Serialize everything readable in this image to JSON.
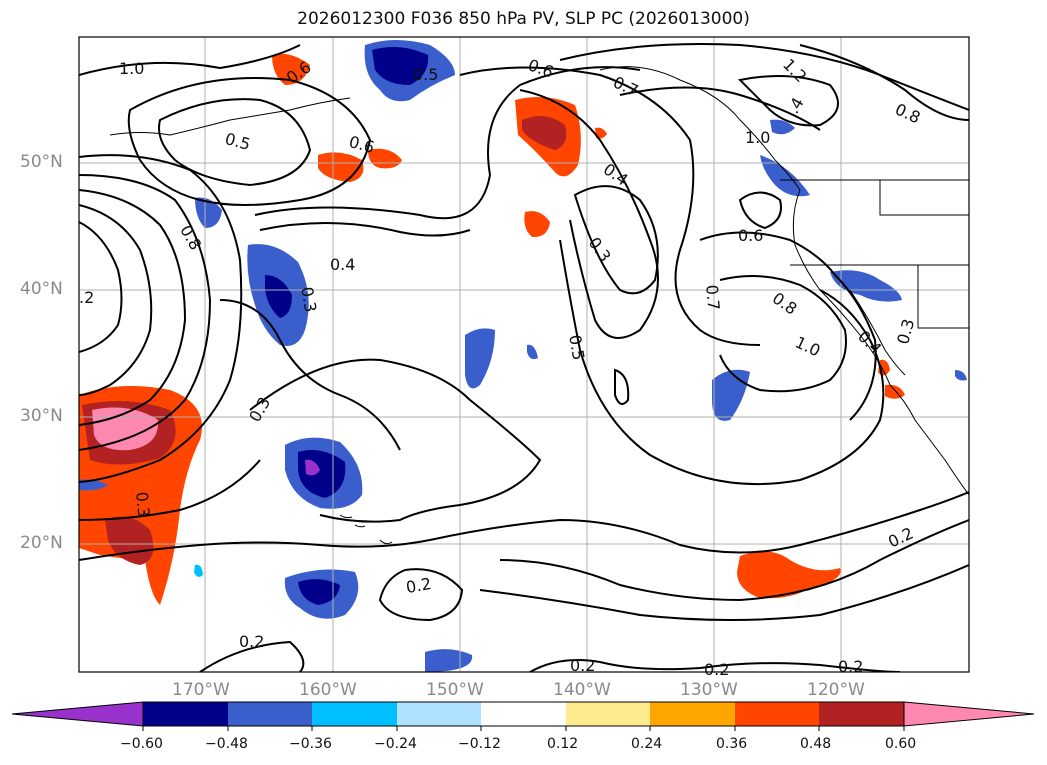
{
  "title": "2026012300 F036 850 hPa PV, SLP PC (2026013000)",
  "axes": {
    "lat_labels": [
      "50°N",
      "40°N",
      "30°N",
      "20°N"
    ],
    "lon_labels": [
      "170°W",
      "160°W",
      "150°W",
      "140°W",
      "130°W",
      "120°W"
    ]
  },
  "contour_labels": [
    "1.0",
    "0.6",
    "0.5",
    "0.5",
    "0.6",
    "0.6",
    "0.7",
    "1.2",
    ".4",
    "1.0",
    "0.8",
    "0.4",
    "0.3",
    "0.4",
    "0.8",
    "0.3",
    "0.6",
    "0.7",
    "0.8",
    "1.0",
    "0.4",
    "0.3",
    "0.5",
    "0.3",
    ".2",
    "0.3",
    "0.2",
    "0.2",
    "0.2",
    "0.2",
    "0.2",
    "0.2"
  ],
  "colorbar": {
    "ticks": [
      "−0.60",
      "−0.48",
      "−0.36",
      "−0.24",
      "−0.12",
      "0.12",
      "0.24",
      "0.36",
      "0.48",
      "0.60"
    ],
    "colors": {
      "under": "#9932cc",
      "neg_060": "#00008b",
      "neg_048": "#3a5fcd",
      "neg_036": "#00bfff",
      "neg_024": "#b0e2ff",
      "zero": "#ffffff",
      "pos_012": "#ffeb8f",
      "pos_024": "#ffa500",
      "pos_036": "#ff4500",
      "pos_048": "#b22222",
      "over": "#ff88b0"
    }
  }
}
